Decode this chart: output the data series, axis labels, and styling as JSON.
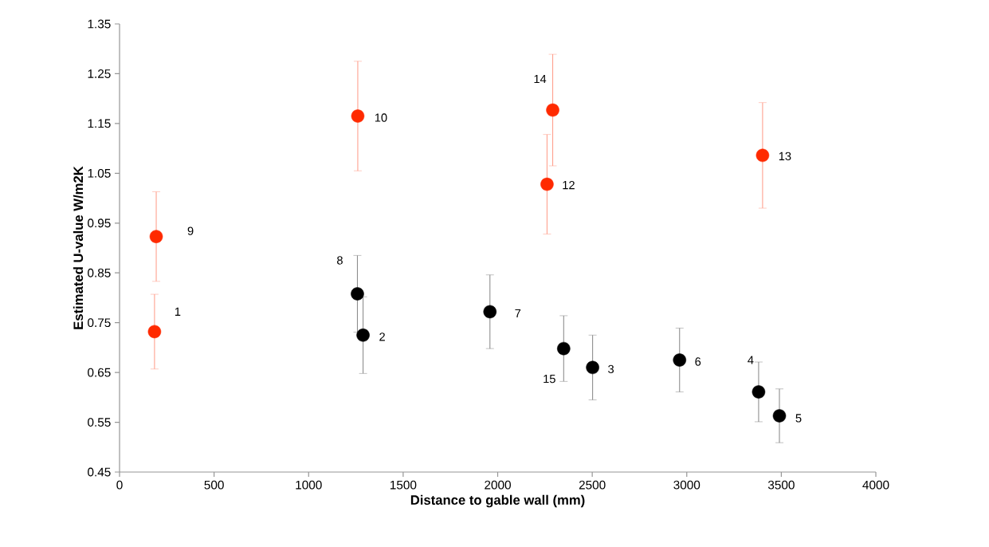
{
  "chart_data": {
    "type": "scatter",
    "xlabel": "Distance to gable wall (mm)",
    "ylabel": "Estimated U-value W/m2K",
    "xlim": [
      0,
      4000
    ],
    "xticks": [
      0,
      500,
      1000,
      1500,
      2000,
      2500,
      3000,
      3500,
      4000
    ],
    "ylim": [
      0.45,
      1.35
    ],
    "yticks": [
      0.45,
      0.55,
      0.65,
      0.75,
      0.85,
      0.95,
      1.05,
      1.15,
      1.25,
      1.35
    ],
    "grid": false,
    "marker": "circle",
    "series": [
      {
        "color": "#ff2a00",
        "x": [
          185,
          194,
          1260,
          2261,
          3401,
          2291
        ],
        "values": [
          0.732,
          0.923,
          1.165,
          1.028,
          1.086,
          1.177
        ],
        "errors": [
          0.075,
          0.09,
          0.11,
          0.1,
          0.106,
          0.112
        ]
      },
      {
        "color": "#000000",
        "x": [
          1288,
          2502,
          3380,
          3490,
          2962,
          1959,
          1258,
          2349
        ],
        "values": [
          0.725,
          0.66,
          0.611,
          0.563,
          0.675,
          0.772,
          0.808,
          0.698
        ],
        "errors": [
          0.077,
          0.065,
          0.06,
          0.054,
          0.064,
          0.074,
          0.077,
          0.066
        ]
      }
    ],
    "annotations": [
      {
        "text": "1",
        "x": 185,
        "y": 0.732
      },
      {
        "text": "2",
        "x": 1288,
        "y": 0.725
      },
      {
        "text": "3",
        "x": 2502,
        "y": 0.66
      },
      {
        "text": "4",
        "x": 3380,
        "y": 0.611
      },
      {
        "text": "5",
        "x": 3490,
        "y": 0.563
      },
      {
        "text": "6",
        "x": 2962,
        "y": 0.675
      },
      {
        "text": "7",
        "x": 1959,
        "y": 0.772
      },
      {
        "text": "8",
        "x": 1258,
        "y": 0.808
      },
      {
        "text": "9",
        "x": 194,
        "y": 0.923
      },
      {
        "text": "10",
        "x": 1260,
        "y": 1.165
      },
      {
        "text": "12",
        "x": 2261,
        "y": 1.028
      },
      {
        "text": "13",
        "x": 3401,
        "y": 1.086
      },
      {
        "text": "14",
        "x": 2291,
        "y": 1.177
      },
      {
        "text": "15",
        "x": 2349,
        "y": 0.698
      }
    ]
  }
}
